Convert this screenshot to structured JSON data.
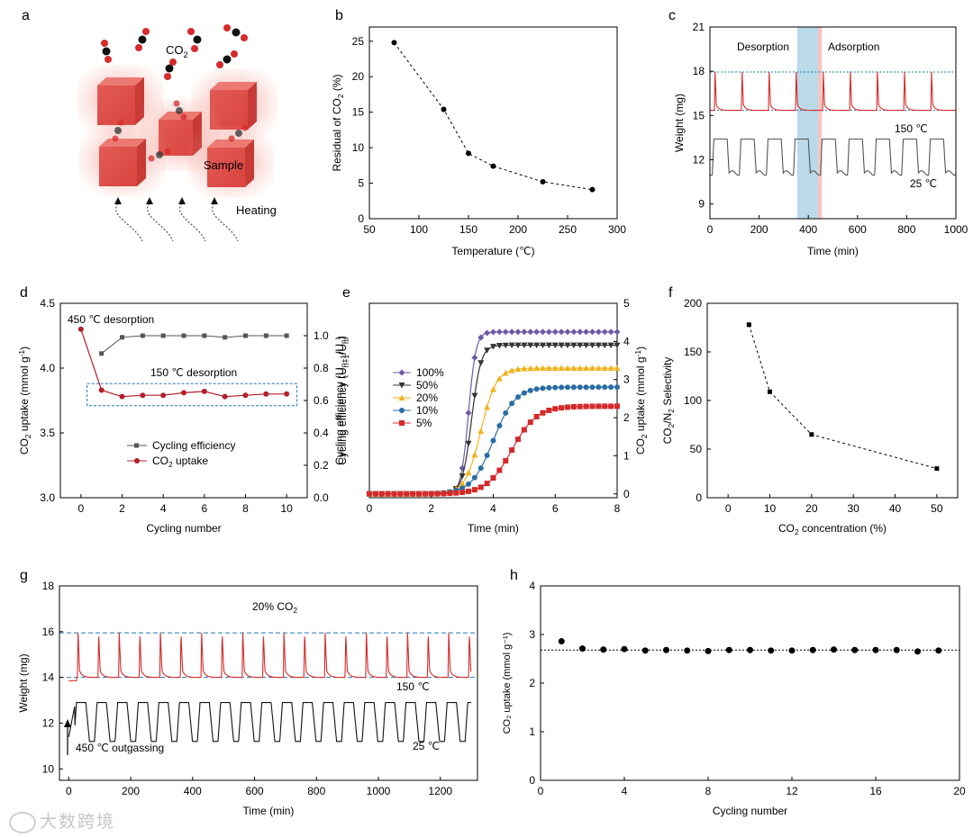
{
  "panel_letters": [
    "a",
    "b",
    "c",
    "d",
    "e",
    "f",
    "g",
    "h"
  ],
  "schematic": {
    "co2_label": "CO",
    "co2_sub": "2",
    "sample_label": "Sample",
    "heating_label": "Heating"
  },
  "watermark": "大数跨境",
  "colors": {
    "red": "#d42a2a",
    "dark_red": "#b31f2a",
    "gray": "#555555",
    "blue_dash": "#1f77b4",
    "purple": "#6d5aa8",
    "yellow": "#f1b21c",
    "steel_blue": "#2b6da4",
    "band_blue": "#a9cfe3",
    "band_red": "#f4b7ae"
  },
  "chart_data": [
    {
      "panel": "b",
      "type": "line",
      "xlabel": "Temperature (℃)",
      "ylabel_main": "Residual of CO",
      "ylabel_sub": "2",
      "ylabel_tail": " (%)",
      "x_ticks": [
        50,
        100,
        150,
        200,
        250,
        300
      ],
      "y_ticks": [
        0,
        5,
        10,
        15,
        20,
        25
      ],
      "xlim": [
        50,
        300
      ],
      "ylim": [
        0,
        27
      ],
      "series": [
        {
          "x": [
            75,
            125,
            150,
            175,
            225,
            275
          ],
          "y": [
            24.8,
            15.4,
            9.2,
            7.4,
            5.2,
            4.1
          ]
        }
      ]
    },
    {
      "panel": "c",
      "type": "line",
      "xlabel": "Time (min)",
      "ylabel": "Weight (mg)",
      "x_ticks": [
        0,
        200,
        400,
        600,
        800,
        1000
      ],
      "y_ticks": [
        9,
        12,
        15,
        18,
        21
      ],
      "xlim": [
        0,
        1000
      ],
      "ylim": [
        8,
        21
      ],
      "annotations": [
        "Desorption",
        "Adsorption",
        "150 ℃",
        "25 ℃"
      ],
      "band_desorption": [
        355,
        440
      ],
      "band_adsorption": [
        440,
        455
      ],
      "ref_lines": [
        17.95,
        15.35
      ],
      "cycles": 9,
      "period": 110,
      "weight_high": 17.95,
      "weight_low": 15.35,
      "temp_high": 13.4,
      "temp_low": 11.1
    },
    {
      "panel": "d",
      "type": "line",
      "xlabel": "Cycling number",
      "ylabel_left_main": "CO",
      "ylabel_left_sub": "2",
      "ylabel_left_tail": " uptake (mmol g",
      "ylabel_left_sup": "-1",
      "ylabel_left_end": ")",
      "ylabel_right": "Cycling efficiency (U",
      "ylabel_right_sub1": "n+1",
      "ylabel_right_mid": "/U",
      "ylabel_right_sub2": "n",
      "ylabel_right_end": ")",
      "x_ticks": [
        0,
        2,
        4,
        6,
        8,
        10
      ],
      "y_left_ticks": [
        3.0,
        3.5,
        4.0,
        4.5
      ],
      "y_right_ticks": [
        0.0,
        0.2,
        0.4,
        0.6,
        0.8,
        1.0
      ],
      "xlim": [
        -1,
        11
      ],
      "ylim_left": [
        3.0,
        4.5
      ],
      "ylim_right": [
        0.0,
        1.2
      ],
      "annotations": [
        "450 ℃ desorption",
        "150 ℃ desorption"
      ],
      "series": [
        {
          "name": "Cycling efficiency",
          "axis": "right",
          "x": [
            1,
            2,
            3,
            4,
            5,
            6,
            7,
            8,
            9,
            10
          ],
          "y": [
            0.89,
            0.99,
            1.0,
            1.0,
            1.0,
            1.0,
            0.99,
            1.0,
            1.0,
            1.0
          ]
        },
        {
          "name_main": "CO",
          "name_sub": "2",
          "name_tail": " uptake",
          "axis": "left",
          "x": [
            0,
            1,
            2,
            3,
            4,
            5,
            6,
            7,
            8,
            9,
            10
          ],
          "y": [
            4.3,
            3.83,
            3.78,
            3.79,
            3.79,
            3.81,
            3.82,
            3.78,
            3.79,
            3.8,
            3.8
          ]
        }
      ]
    },
    {
      "panel": "e",
      "type": "line",
      "xlabel": "Time (min)",
      "ylabel_left": "Cycling efficiency (U",
      "ylabel_left_sub1": "n+1",
      "ylabel_left_mid": "/U",
      "ylabel_left_sub2": "n",
      "ylabel_left_end": ")",
      "ylabel_right_main": "CO",
      "ylabel_right_sub": "2",
      "ylabel_right_tail": " uptake (mmol g",
      "ylabel_right_sup": "-1",
      "ylabel_right_end": ")",
      "x_ticks": [
        0,
        2,
        4,
        6,
        8
      ],
      "y_right_ticks": [
        0,
        1,
        2,
        3,
        4,
        5
      ],
      "xlim": [
        0,
        8
      ],
      "ylim": [
        -0.1,
        5
      ],
      "series": [
        {
          "name": "100%",
          "plateau": 4.25,
          "midpoint": 3.2,
          "width": 0.12
        },
        {
          "name": "50%",
          "plateau": 3.9,
          "midpoint": 3.3,
          "width": 0.15
        },
        {
          "name": "20%",
          "plateau": 3.3,
          "midpoint": 3.6,
          "width": 0.25
        },
        {
          "name": "10%",
          "plateau": 2.8,
          "midpoint": 4.0,
          "width": 0.35
        },
        {
          "name": "5%",
          "plateau": 2.3,
          "midpoint": 4.6,
          "width": 0.4
        }
      ]
    },
    {
      "panel": "f",
      "type": "line",
      "xlabel_main": "CO",
      "xlabel_sub": "2",
      "xlabel_tail": " concentration (%)",
      "ylabel_a": "CO",
      "ylabel_a_sub": "2",
      "ylabel_b": "/N",
      "ylabel_b_sub": "2",
      "ylabel_c": " Selectivity",
      "x_ticks": [
        0,
        10,
        20,
        30,
        40,
        50
      ],
      "y_ticks": [
        0,
        50,
        100,
        150,
        200
      ],
      "xlim": [
        -5,
        55
      ],
      "ylim": [
        0,
        200
      ],
      "series": [
        {
          "x": [
            5,
            10,
            20,
            50
          ],
          "y": [
            178,
            109,
            65,
            30
          ]
        }
      ]
    },
    {
      "panel": "g",
      "type": "line",
      "xlabel": "Time (min)",
      "ylabel": "Weight (mg)",
      "x_ticks": [
        0,
        200,
        400,
        600,
        800,
        1000,
        1200
      ],
      "y_ticks": [
        10,
        12,
        14,
        16,
        18
      ],
      "xlim": [
        -30,
        1320
      ],
      "ylim": [
        9.5,
        18
      ],
      "annotations": [
        "20% CO",
        "2",
        "150 ℃",
        "25 ℃",
        "450 ℃ outgassing"
      ],
      "ref_lines": [
        15.95,
        14.0
      ],
      "cycles": 19,
      "period": 66.5,
      "weight_high": 15.95,
      "weight_low": 14.0,
      "temp_high": 12.9,
      "temp_low": 11.2
    },
    {
      "panel": "h",
      "type": "scatter",
      "xlabel": "Cycling number",
      "ylabel": "CO₂ uptake (mmol g⁻¹)",
      "x_ticks": [
        0,
        4,
        8,
        12,
        16,
        20
      ],
      "y_ticks": [
        0,
        1,
        2,
        3,
        4
      ],
      "xlim": [
        0,
        20
      ],
      "ylim": [
        0,
        4
      ],
      "ref_line": 2.68,
      "series": [
        {
          "x": [
            1,
            2,
            3,
            4,
            5,
            6,
            7,
            8,
            9,
            10,
            11,
            12,
            13,
            14,
            15,
            16,
            17,
            18,
            19
          ],
          "y": [
            2.86,
            2.71,
            2.69,
            2.7,
            2.67,
            2.68,
            2.67,
            2.66,
            2.68,
            2.68,
            2.67,
            2.67,
            2.68,
            2.69,
            2.68,
            2.68,
            2.68,
            2.65,
            2.67
          ]
        }
      ]
    }
  ]
}
